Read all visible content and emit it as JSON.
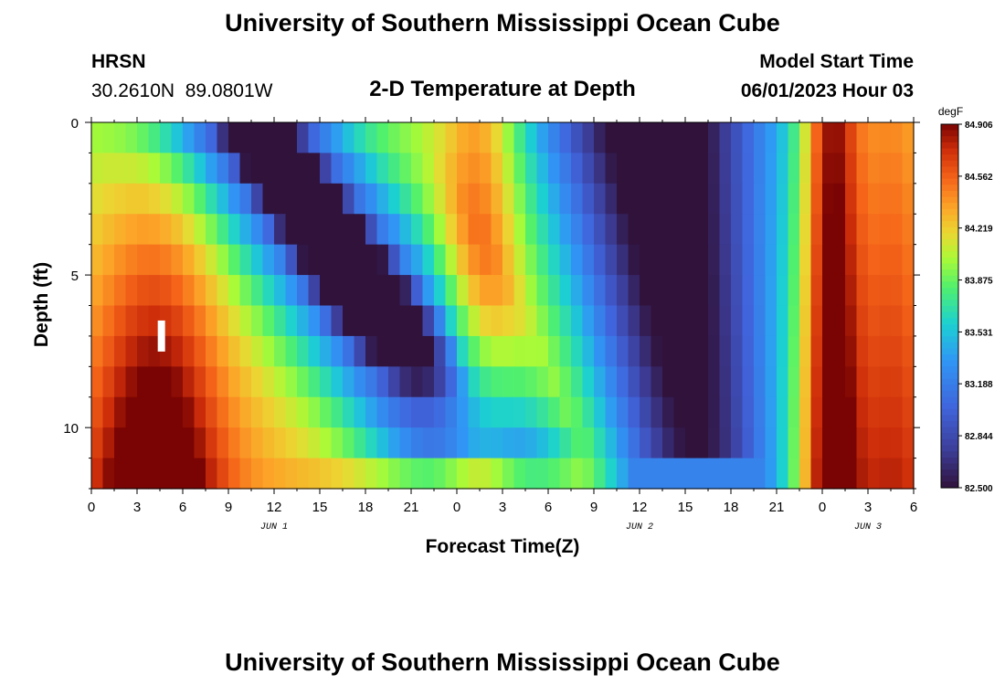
{
  "title": "University of Southern Mississippi Ocean Cube",
  "footer_title": "University of Southern Mississippi Ocean Cube",
  "station": {
    "name": "HRSN",
    "coords": "30.2610N  89.0801W"
  },
  "plot_title": "2-D Temperature at Depth",
  "model_start": {
    "label": "Model Start Time",
    "value": "06/01/2023 Hour 03"
  },
  "chart_data": {
    "type": "heatmap",
    "title": "2-D Temperature at Depth",
    "xlabel": "Forecast Time(Z)",
    "ylabel": "Depth (ft)",
    "x_range_hours": [
      0,
      54
    ],
    "x_tick_labels": [
      "0",
      "3",
      "6",
      "9",
      "12",
      "15",
      "18",
      "21",
      "0",
      "3",
      "6",
      "9",
      "12",
      "15",
      "18",
      "21",
      "0",
      "3",
      "6"
    ],
    "x_tick_hours": [
      0,
      3,
      6,
      9,
      12,
      15,
      18,
      21,
      24,
      27,
      30,
      33,
      36,
      39,
      42,
      45,
      48,
      51,
      54
    ],
    "date_labels": [
      {
        "text": "JUN 1",
        "hour": 12
      },
      {
        "text": "JUN 2",
        "hour": 36
      },
      {
        "text": "JUN 3",
        "hour": 51
      }
    ],
    "y_range_ft": [
      0,
      12
    ],
    "y_ticks": [
      0,
      5,
      10
    ],
    "y_tick_labels": [
      "0",
      "5",
      "10"
    ],
    "depth_levels_ft": [
      0.5,
      1.5,
      2.5,
      3.5,
      4.5,
      5.5,
      6.5,
      7.5,
      8.5,
      9.5,
      10.5,
      11.5
    ],
    "colorbar": {
      "units": "degF",
      "min": 82.5,
      "max": 84.906,
      "ticks": [
        84.906,
        84.562,
        84.219,
        83.875,
        83.531,
        83.188,
        82.844,
        82.5
      ],
      "tick_labels": [
        "84.906",
        "84.562",
        "84.219",
        "83.875",
        "83.531",
        "83.188",
        "82.844",
        "82.500"
      ]
    },
    "marker": {
      "hour": 4.6,
      "depth_ft": 7
    }
  }
}
